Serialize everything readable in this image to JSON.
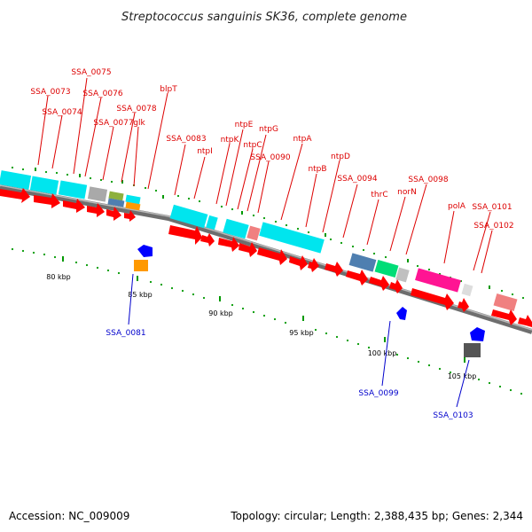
{
  "title": "Streptococcus sanguinis SK36, complete genome",
  "accession": "Accession: NC_009009",
  "topology": "Topology: circular; Length: 2,388,435 bp; Genes: 2,344",
  "colors": {
    "backbone": "#808080",
    "gene_arrow": "#ff0000",
    "red_label": "#dd0000",
    "blue_label": "#0000cc",
    "tick": "#009900",
    "cyan": "#00e5ee",
    "blue_gene": "#0000ff",
    "orange": "#ff9900",
    "magenta": "#ff1493",
    "steelblue": "#4f7fb0",
    "green": "#00dd77",
    "olive": "#8db03c",
    "gray": "#a9a9a9",
    "pink": "#f08080"
  },
  "scale_labels": [
    "80 kbp",
    "85 kbp",
    "90 kbp",
    "95 kbp",
    "100 kbp",
    "105 kbp"
  ],
  "outer_gene_labels": [
    "SSA_0075",
    "SSA_0073",
    "SSA_0076",
    "SSA_0074",
    "SSA_0078",
    "SSA_0077",
    "glk",
    "blpT",
    "SSA_0083",
    "ntpI",
    "ntpK",
    "ntpE",
    "ntpC",
    "ntpG",
    "SSA_0090",
    "ntpA",
    "ntpB",
    "ntpD",
    "SSA_0094",
    "thrC",
    "norN",
    "SSA_0098",
    "polA",
    "SSA_0101",
    "SSA_0102"
  ],
  "inner_gene_labels": [
    "SSA_0081",
    "SSA_0099",
    "SSA_0103"
  ]
}
